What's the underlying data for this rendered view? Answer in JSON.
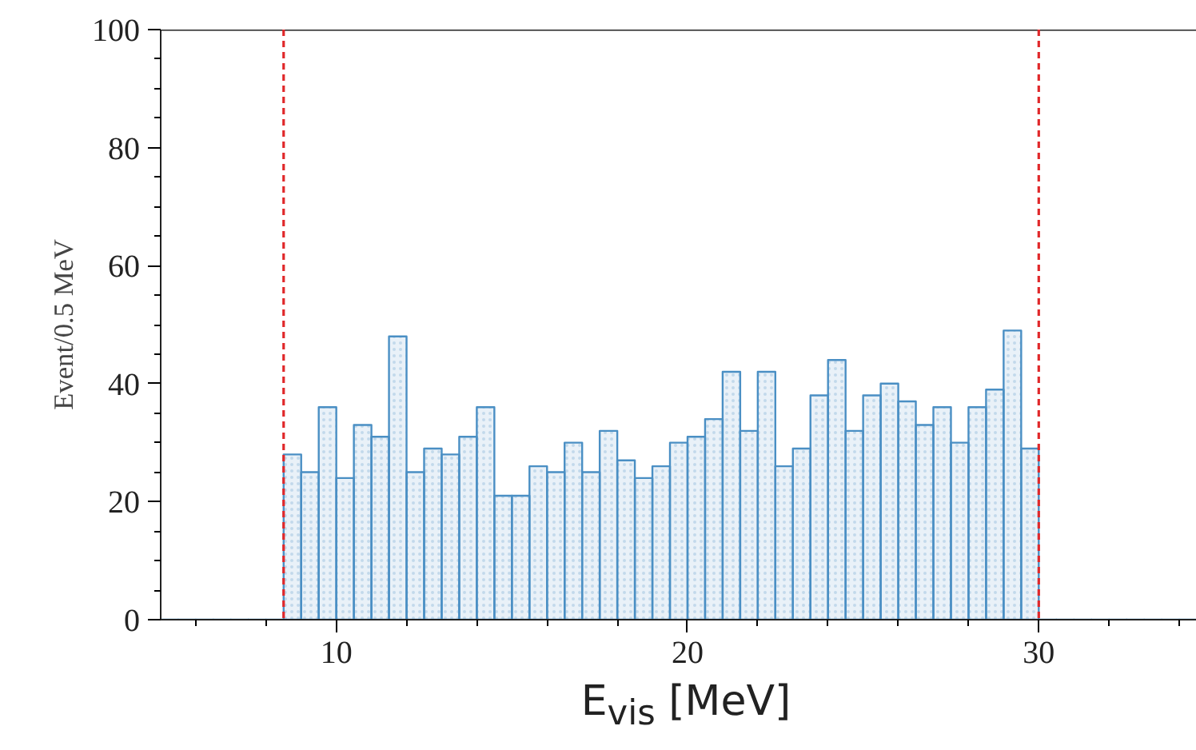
{
  "chart_data": {
    "type": "histogram",
    "xlabel": "E$_{vis}$ [MeV]",
    "ylabel": "Event/0.5 MeV",
    "bins": [
      5,
      5.5,
      6,
      6.5,
      7,
      7.5,
      8,
      8.5,
      9,
      9.5,
      10,
      10.5,
      11,
      11.5,
      12,
      12.5,
      13,
      13.5,
      14,
      14.5,
      15,
      15.5,
      16,
      16.5,
      17,
      17.5,
      18,
      18.5,
      19,
      19.5,
      20,
      20.5,
      21,
      21.5,
      22,
      22.5,
      23,
      23.5,
      24,
      24.5,
      25,
      25.5,
      26,
      26.5,
      27,
      27.5,
      28,
      28.5,
      29,
      29.5,
      30,
      30.5,
      31,
      31.5,
      32,
      32.5,
      33,
      33.5,
      34,
      34.5
    ],
    "values": [
      0,
      0,
      0,
      0,
      0,
      0,
      0,
      28,
      25,
      36,
      24,
      33,
      31,
      48,
      25,
      29,
      28,
      31,
      36,
      21,
      21,
      26,
      25,
      30,
      25,
      32,
      27,
      24,
      26,
      30,
      31,
      34,
      42,
      32,
      42,
      26,
      29,
      38,
      44,
      32,
      38,
      40,
      37,
      33,
      36,
      30,
      36,
      39,
      49,
      29,
      0,
      0,
      0,
      0,
      0,
      0,
      0,
      0,
      0
    ],
    "color": "#4a8fc4",
    "xlim": [
      5,
      34.5
    ],
    "ylim": [
      0,
      100
    ],
    "xticks": [
      10,
      20,
      30
    ],
    "yticks": [
      0,
      20,
      40,
      60,
      80,
      100
    ],
    "ref_lines": [
      {
        "axis": "x",
        "value": 8.5,
        "color": "#e0282a",
        "line_style": "dashed"
      },
      {
        "axis": "x",
        "value": 30,
        "color": "#e0282a",
        "line_style": "dashed"
      }
    ],
    "grid": false
  }
}
